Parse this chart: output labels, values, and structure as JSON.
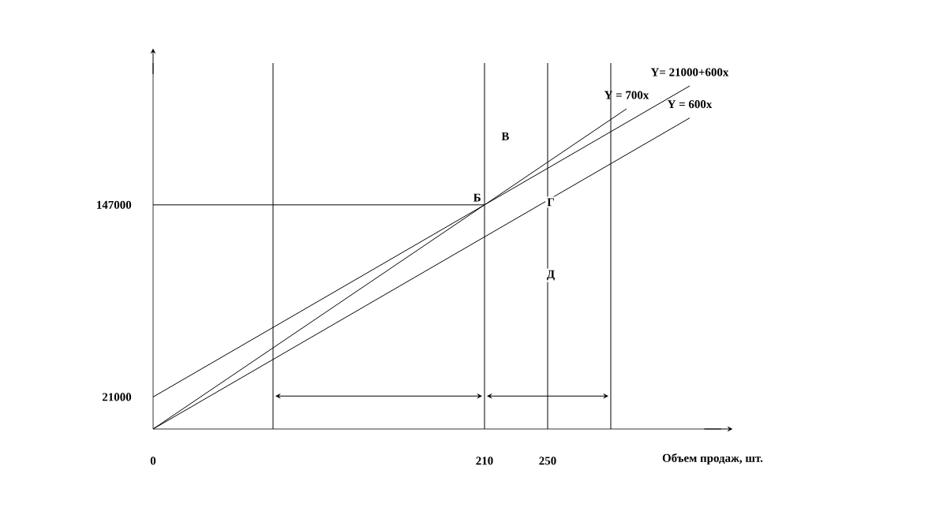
{
  "chart_data": {
    "type": "line",
    "xlabel": "Объем продаж, шт.",
    "xlim": [
      0,
      360
    ],
    "ylim": [
      0,
      240000
    ],
    "xticks": [
      0,
      210,
      250
    ],
    "yticks": [
      21000,
      147000
    ],
    "series": [
      {
        "name": "Y = 700x",
        "color": "#000000",
        "x": [
          0,
          300
        ],
        "values": [
          0,
          210000
        ]
      },
      {
        "name": "Y= 21000+600x",
        "color": "#000000",
        "x": [
          0,
          340
        ],
        "values": [
          21000,
          225000
        ]
      },
      {
        "name": "Y = 600x",
        "color": "#000000",
        "x": [
          0,
          340
        ],
        "values": [
          0,
          204000
        ]
      },
      {
        "color": "#000000",
        "x": [
          0,
          210
        ],
        "values": [
          147000,
          147000
        ]
      }
    ],
    "ref_lines": [
      {
        "axis": "x",
        "value": 76,
        "color": "#000000"
      },
      {
        "axis": "x",
        "value": 210,
        "color": "#000000"
      },
      {
        "axis": "x",
        "value": 250,
        "color": "#000000"
      },
      {
        "axis": "x",
        "value": 290,
        "color": "#000000"
      }
    ],
    "annotations": [
      {
        "text": "Б",
        "x": 210,
        "y": 147000
      },
      "В",
      "Г",
      "Д"
    ],
    "legend": false,
    "marker": "none",
    "line_style": "solid",
    "grid": false
  }
}
